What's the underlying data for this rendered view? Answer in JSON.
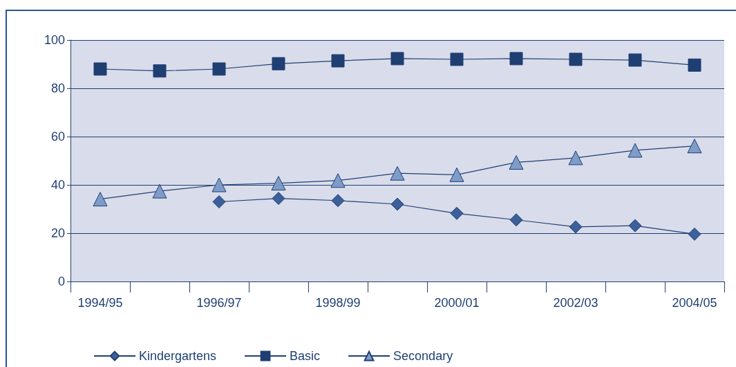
{
  "chart_data": {
    "type": "line",
    "categories": [
      "1994/95",
      null,
      "1996/97",
      null,
      "1998/99",
      null,
      "2000/01",
      null,
      "2002/03",
      null,
      "2004/05"
    ],
    "series": [
      {
        "name": "Kindergartens",
        "color": "#3d5f9a",
        "marker": "diamond",
        "values": [
          null,
          null,
          33,
          34.4,
          33.5,
          32,
          28.2,
          25.5,
          22.6,
          23.1,
          19.6
        ]
      },
      {
        "name": "Basic",
        "color": "#1f3f73",
        "marker": "square",
        "values": [
          88,
          87.2,
          88,
          90.2,
          91.4,
          92.3,
          92,
          92.3,
          92,
          91.7,
          89.6
        ]
      },
      {
        "name": "Secondary",
        "color": "#7f9cc9",
        "marker": "triangle",
        "values": [
          34.1,
          37.4,
          40,
          40.7,
          41.8,
          44.8,
          44.2,
          49.3,
          51.2,
          54.3,
          56.1
        ]
      }
    ],
    "ylim": [
      0,
      100
    ],
    "yticks": [
      0,
      20,
      40,
      60,
      80,
      100
    ],
    "grid": "y",
    "legend": "bottom",
    "line_style": "solid"
  }
}
